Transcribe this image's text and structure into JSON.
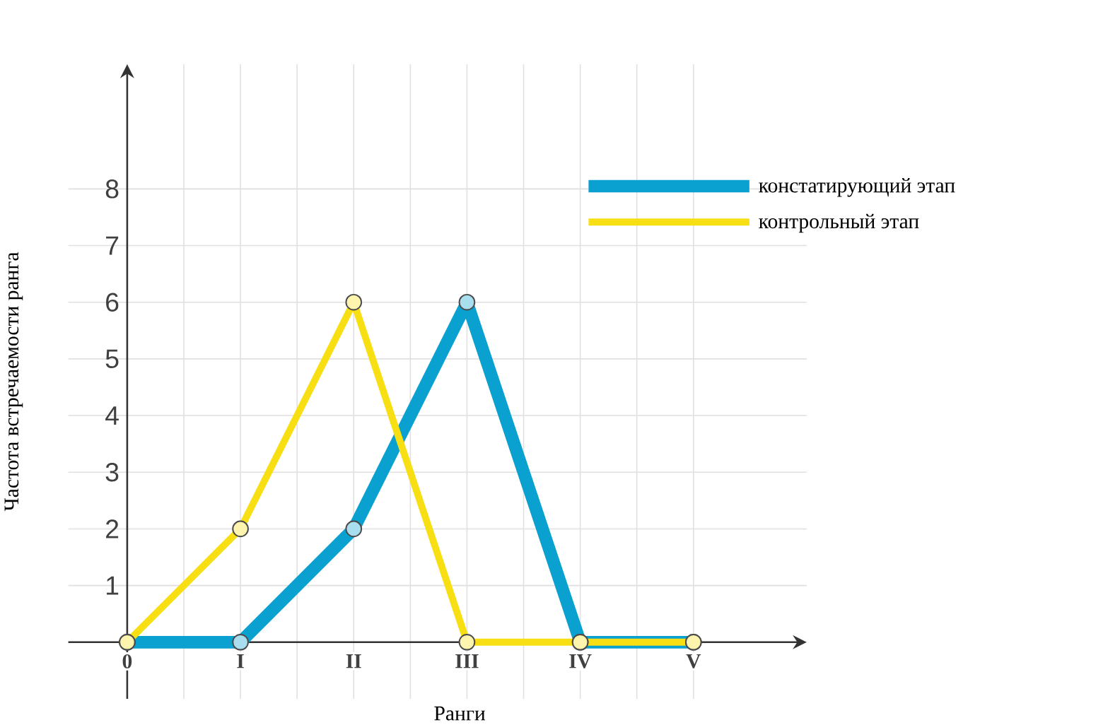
{
  "chart_data": {
    "type": "line",
    "xlabel": "Ранги",
    "ylabel": "Частота встречаемости ранга",
    "categories": [
      "0",
      "I",
      "II",
      "III",
      "IV",
      "V"
    ],
    "series": [
      {
        "name": "констатирующий этап",
        "color": "#0aa0d0",
        "values": [
          0,
          0,
          2,
          6,
          0,
          0
        ]
      },
      {
        "name": "контрольный этап",
        "color": "#f8df14",
        "values": [
          0,
          2,
          6,
          0,
          0,
          0
        ]
      }
    ],
    "ylim": [
      -1,
      10.2
    ],
    "yticks": [
      1,
      2,
      3,
      4,
      5,
      6,
      7,
      8
    ],
    "grid": true,
    "legend": "top right",
    "marker": "circle",
    "line_style": "solid"
  }
}
